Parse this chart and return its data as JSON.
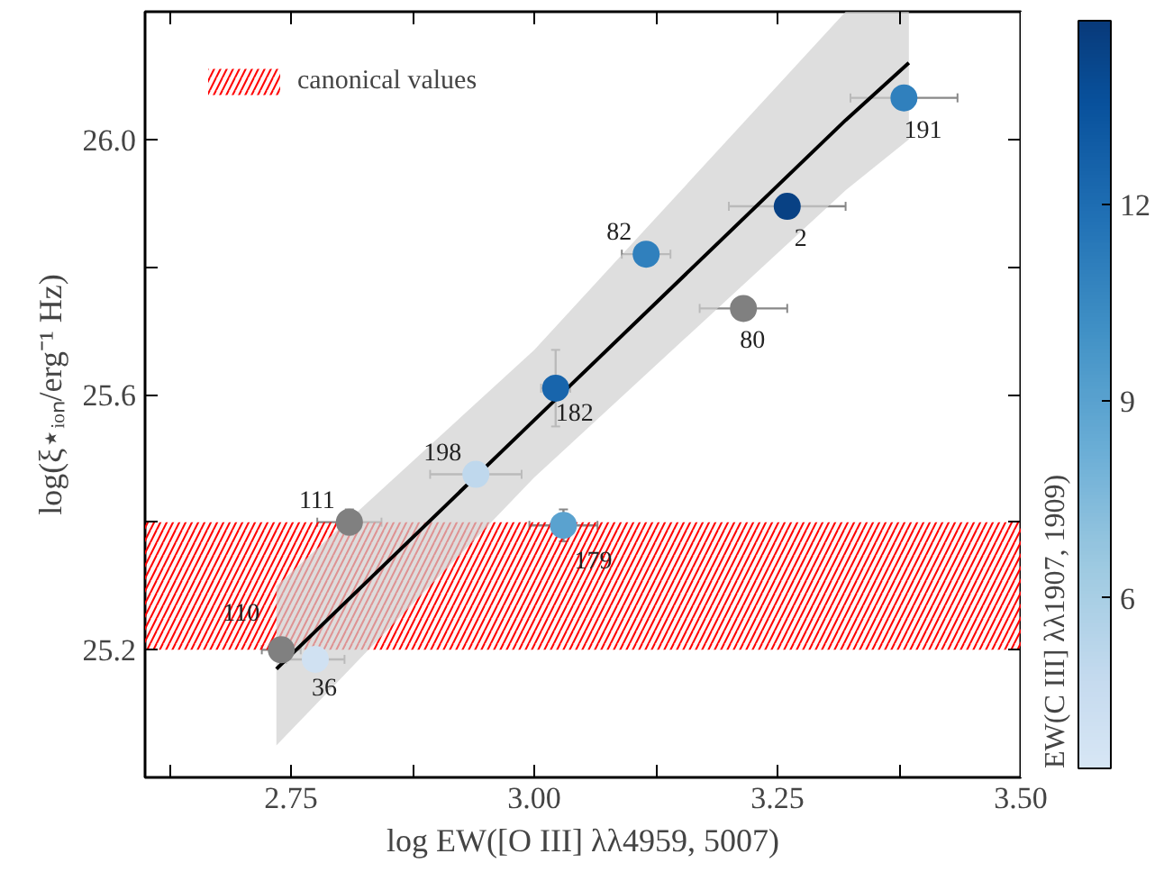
{
  "chart_data": {
    "type": "scatter",
    "xlabel": "log EW([O III] λλ4959, 5007)",
    "ylabel": "log(ξ⋆ᵢₒₙ/erg⁻¹ Hz)",
    "clabel": "EW(C III] λλ1907, 1909)",
    "xlim": [
      2.6,
      3.5
    ],
    "ylim": [
      25.0,
      26.2
    ],
    "xticks": [
      {
        "value": 2.625,
        "label": null
      },
      2.75,
      {
        "value": 2.875,
        "label": null
      },
      "3.00",
      {
        "value": 3.125,
        "label": null
      },
      3.25,
      {
        "value": 3.375,
        "label": null
      },
      "3.50"
    ],
    "yticks": [
      25.2,
      {
        "value": 25.4,
        "label": null
      },
      25.6,
      {
        "value": 25.8,
        "label": null
      },
      "26.0"
    ],
    "clim": [
      3.4,
      14.8
    ],
    "cticks": [
      6,
      9,
      12
    ],
    "series": [
      {
        "type": "line",
        "x": [
          2.735,
          3.0,
          3.32,
          3.385
        ],
        "values": [
          25.17,
          25.56,
          26.03,
          26.12
        ],
        "lower": [
          25.05,
          25.47,
          25.92,
          26.0
        ],
        "upper": [
          25.3,
          25.67,
          26.2,
          26.2
        ],
        "color": "#000000"
      },
      {
        "marker": "circle",
        "x": [
          3.38,
          3.26,
          3.115,
          3.215,
          3.022,
          2.94,
          2.81,
          3.03,
          2.74,
          2.775
        ],
        "values": [
          26.065,
          25.895,
          25.82,
          25.735,
          25.61,
          25.475,
          25.4,
          25.395,
          25.2,
          25.185
        ],
        "cvalues": [
          11,
          14.5,
          11,
          null,
          12.5,
          5,
          null,
          9,
          null,
          4
        ],
        "colors": [
          null,
          null,
          null,
          "#808080",
          null,
          null,
          "#808080",
          null,
          "#808080",
          null
        ],
        "errors": [
          0.015,
          null,
          0.015,
          0.015,
          0.06,
          null,
          0.02,
          0.025,
          0.015,
          0.015
        ],
        "xerrors": [
          0.055,
          0.06,
          0.025,
          0.045,
          0.015,
          0.047,
          0.033,
          0.035,
          0.02,
          0.03
        ]
      }
    ],
    "bands": [
      {
        "axis": "y",
        "from": 25.2,
        "to": 25.4,
        "label": "canonical values",
        "color": "#ff0000"
      }
    ],
    "legend": "top left",
    "annotations": [
      {
        "text": "191",
        "x": 3.38,
        "y": 26.065
      },
      {
        "text": "2",
        "x": 3.26,
        "y": 25.895
      },
      {
        "text": "82",
        "x": 3.115,
        "y": 25.82
      },
      {
        "text": "80",
        "x": 3.215,
        "y": 25.735
      },
      {
        "text": "182",
        "x": 3.022,
        "y": 25.61
      },
      {
        "text": "198",
        "x": 2.94,
        "y": 25.475
      },
      {
        "text": "111",
        "x": 2.81,
        "y": 25.4
      },
      {
        "text": "179",
        "x": 3.03,
        "y": 25.395
      },
      {
        "text": "110",
        "x": 2.74,
        "y": 25.2
      },
      {
        "text": "36",
        "x": 2.775,
        "y": 25.185
      }
    ]
  }
}
